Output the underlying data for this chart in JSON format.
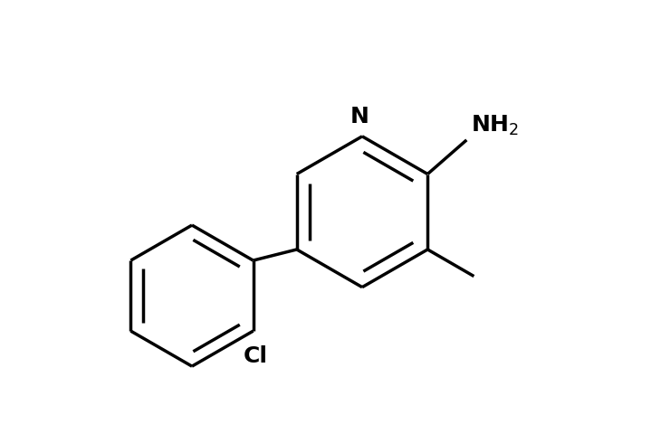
{
  "background_color": "#ffffff",
  "line_color": "#000000",
  "line_width": 2.5,
  "font_size_labels": 18,
  "figsize": [
    7.3,
    4.9
  ],
  "dpi": 100
}
